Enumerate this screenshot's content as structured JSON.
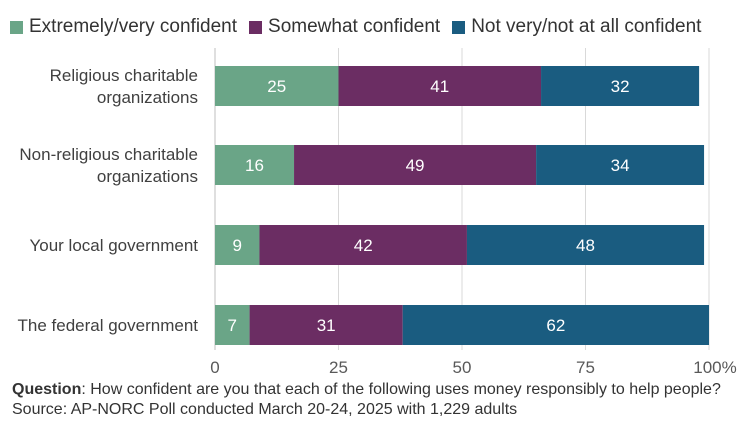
{
  "chart_data": {
    "type": "bar",
    "orientation": "horizontal",
    "stacked": true,
    "categories": [
      "Religious charitable organizations",
      "Non-religious charitable organizations",
      "Your local government",
      "The federal government"
    ],
    "series": [
      {
        "name": "Extremely/very confident",
        "color": "#6aa587",
        "values": [
          25,
          16,
          9,
          7
        ]
      },
      {
        "name": "Somewhat confident",
        "color": "#6b2d63",
        "values": [
          41,
          49,
          42,
          31
        ]
      },
      {
        "name": "Not very/not at all confident",
        "color": "#1a5c80",
        "values": [
          32,
          34,
          48,
          62
        ]
      }
    ],
    "xlim": [
      0,
      100
    ],
    "xticks": [
      "0",
      "25",
      "50",
      "75",
      "100%"
    ],
    "grid": true,
    "legend": "top"
  },
  "footer": {
    "question_label": "Question",
    "question_text": ": How confident are you that each of the following uses money responsibly to help people?",
    "source_text": "Source: AP-NORC Poll conducted March 20-24, 2025 with 1,229 adults"
  }
}
